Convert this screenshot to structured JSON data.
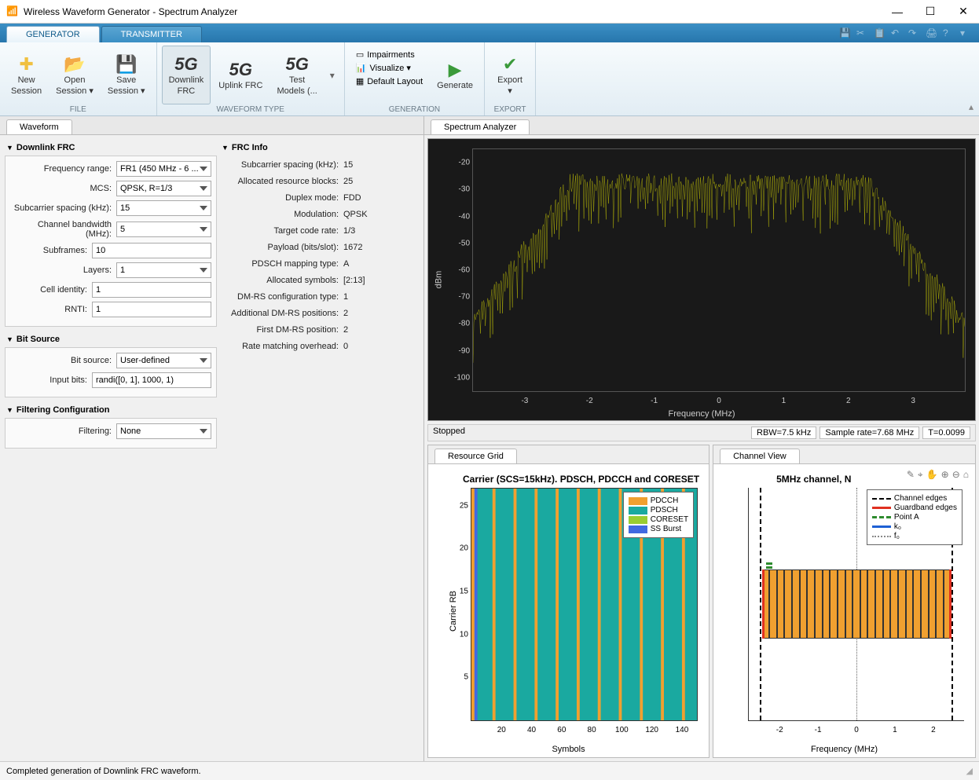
{
  "window": {
    "title": "Wireless Waveform Generator - Spectrum Analyzer"
  },
  "tabs": {
    "generator": "GENERATOR",
    "transmitter": "TRANSMITTER"
  },
  "toolstrip": {
    "file": {
      "new": "New\nSession",
      "open": "Open\nSession ▾",
      "save": "Save\nSession ▾",
      "group": "FILE"
    },
    "waveform": {
      "dl": "Downlink\nFRC",
      "ul": "Uplink FRC",
      "tm": "Test\nModels (...",
      "group": "WAVEFORM TYPE"
    },
    "generation": {
      "imp": "Impairments",
      "vis": "Visualize ▾",
      "def": "Default Layout",
      "gen": "Generate",
      "group": "GENERATION"
    },
    "export": {
      "label": "Export\n▾",
      "group": "EXPORT"
    }
  },
  "leftTab": "Waveform",
  "sections": {
    "dlfrc": {
      "title": "Downlink FRC",
      "rows": {
        "freq": {
          "label": "Frequency range:",
          "value": "FR1 (450 MHz - 6 ..."
        },
        "mcs": {
          "label": "MCS:",
          "value": "QPSK, R=1/3"
        },
        "scs": {
          "label": "Subcarrier spacing (kHz):",
          "value": "15"
        },
        "bw": {
          "label": "Channel bandwidth (MHz):",
          "value": "5"
        },
        "sub": {
          "label": "Subframes:",
          "value": "10"
        },
        "lay": {
          "label": "Layers:",
          "value": "1"
        },
        "cell": {
          "label": "Cell identity:",
          "value": "1"
        },
        "rnti": {
          "label": "RNTI:",
          "value": "1"
        }
      }
    },
    "bitsrc": {
      "title": "Bit Source",
      "rows": {
        "bs": {
          "label": "Bit source:",
          "value": "User-defined"
        },
        "ib": {
          "label": "Input bits:",
          "value": "randi([0, 1], 1000, 1)"
        }
      }
    },
    "filt": {
      "title": "Filtering Configuration",
      "rows": {
        "f": {
          "label": "Filtering:",
          "value": "None"
        }
      }
    },
    "frcinfo": {
      "title": "FRC Info",
      "rows": {
        "scs": {
          "label": "Subcarrier spacing (kHz):",
          "value": "15"
        },
        "arb": {
          "label": "Allocated resource blocks:",
          "value": "25"
        },
        "dup": {
          "label": "Duplex mode:",
          "value": "FDD"
        },
        "mod": {
          "label": "Modulation:",
          "value": "QPSK"
        },
        "tcr": {
          "label": "Target code rate:",
          "value": "1/3"
        },
        "pay": {
          "label": "Payload (bits/slot):",
          "value": "1672"
        },
        "pmt": {
          "label": "PDSCH mapping type:",
          "value": "A"
        },
        "as": {
          "label": "Allocated symbols:",
          "value": "[2:13]"
        },
        "dct": {
          "label": "DM-RS configuration type:",
          "value": "1"
        },
        "adp": {
          "label": "Additional DM-RS positions:",
          "value": "2"
        },
        "fdp": {
          "label": "First DM-RS position:",
          "value": "2"
        },
        "rmo": {
          "label": "Rate matching overhead:",
          "value": "0"
        }
      }
    }
  },
  "spectrum": {
    "tab": "Spectrum Analyzer",
    "ylabel": "dBm",
    "xlabel": "Frequency (MHz)",
    "yticks": [
      -20,
      -30,
      -40,
      -50,
      -60,
      -70,
      -80,
      -90,
      -100
    ],
    "ylim": [
      -105,
      -15
    ],
    "xticks": [
      -3,
      -2,
      -1,
      0,
      1,
      2,
      3
    ],
    "xlim": [
      -3.8,
      3.8
    ],
    "trace_color": "#f5f500",
    "bg": "#000000",
    "status": {
      "state": "Stopped",
      "rbw": "RBW=7.5 kHz",
      "rate": "Sample rate=7.68 MHz",
      "t": "T=0.0099"
    }
  },
  "resourceGrid": {
    "tab": "Resource Grid",
    "title": "Carrier (SCS=15kHz). PDSCH, PDCCH and CORESET",
    "ylabel": "Carrier RB",
    "xlabel": "Symbols",
    "yticks": [
      5,
      10,
      15,
      20,
      25
    ],
    "ylim": [
      0,
      27
    ],
    "xticks": [
      20,
      40,
      60,
      80,
      100,
      120,
      140
    ],
    "xlim": [
      0,
      150
    ],
    "legend": [
      {
        "label": "PDCCH",
        "color": "#f0a030"
      },
      {
        "label": "PDSCH",
        "color": "#1aa9a0"
      },
      {
        "label": "CORESET",
        "color": "#9acd32"
      },
      {
        "label": "SS Burst",
        "color": "#4169e1"
      }
    ],
    "colors": {
      "pdsch": "#1aa9a0",
      "pdcch": "#f0a030",
      "ss": "#4169e1"
    }
  },
  "channelView": {
    "tab": "Channel View",
    "title": "5MHz channel,   N",
    "xlabel": "Frequency (MHz)",
    "xticks": [
      -2,
      -1,
      0,
      1,
      2
    ],
    "xlim": [
      -2.8,
      2.8
    ],
    "legend": [
      {
        "label": "Channel edges",
        "style": "dash",
        "color": "#000000"
      },
      {
        "label": "Guardband edges",
        "style": "solid",
        "color": "#e03020"
      },
      {
        "label": "Point A",
        "style": "dashdot",
        "color": "#2e8b2e"
      },
      {
        "label": "k₀",
        "style": "solid",
        "color": "#1e60d4"
      },
      {
        "label": "f₀",
        "style": "dot",
        "color": "#888888"
      }
    ],
    "bar_color": "#f0a030",
    "bar_count": 25
  },
  "statusbar": "Completed generation of Downlink FRC waveform."
}
